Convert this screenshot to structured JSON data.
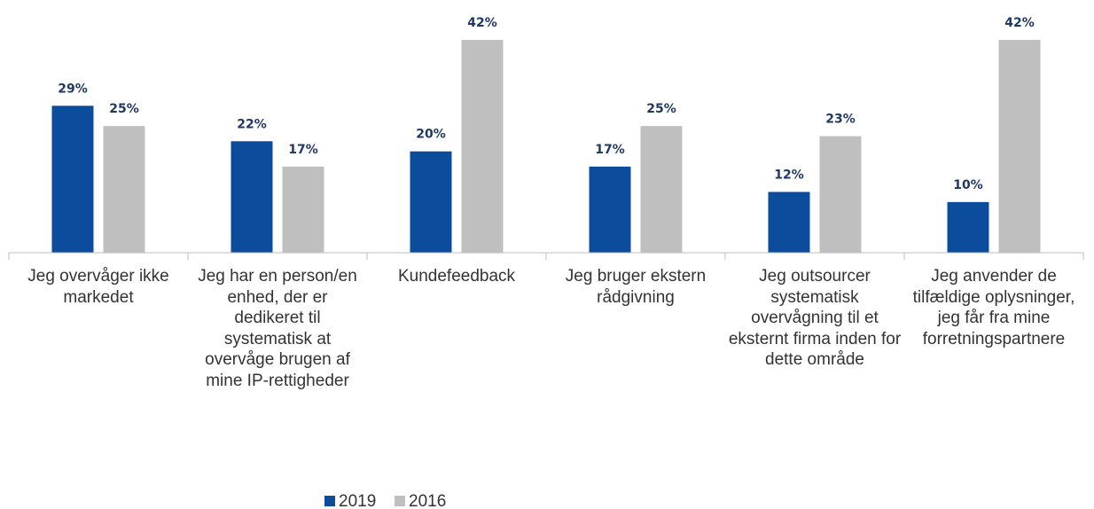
{
  "chart_data": {
    "type": "bar",
    "categories": [
      "Jeg overvåger ikke markedet",
      "Jeg har en person/en enhed, der er dedikeret til systematisk at overvåge brugen af mine IP-rettigheder",
      "Kundefeedback",
      "Jeg bruger ekstern rådgivning",
      "Jeg outsourcer systematisk overvågning til et eksternt firma inden for dette område",
      "Jeg anvender de tilfældige oplysninger, jeg får fra mine forretningspartnere"
    ],
    "series": [
      {
        "name": "2019",
        "color": "#0b4c9c",
        "values": [
          29,
          22,
          20,
          17,
          12,
          10
        ],
        "value_labels": [
          "29%",
          "22%",
          "20%",
          "17%",
          "12%",
          "10%"
        ]
      },
      {
        "name": "2016",
        "color": "#bfbfbf",
        "values": [
          25,
          17,
          42,
          25,
          23,
          42
        ],
        "value_labels": [
          "25%",
          "17%",
          "42%",
          "25%",
          "23%",
          "42%"
        ]
      }
    ],
    "ylim": [
      0,
      42
    ],
    "legend": "bottom"
  }
}
